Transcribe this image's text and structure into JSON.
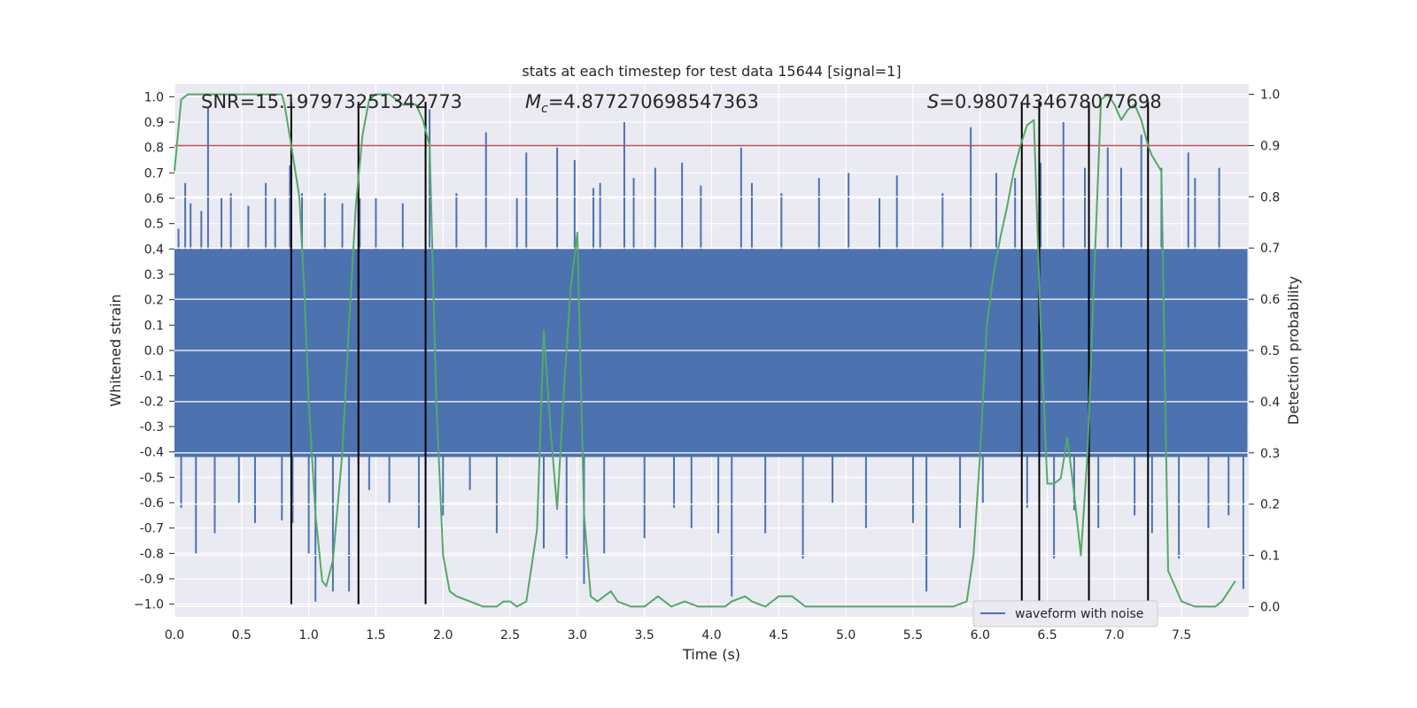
{
  "chart_data": {
    "type": "line",
    "title": "stats at each timestep for test data 15644 [signal=1]",
    "xlabel": "Time (s)",
    "ylabel": "Whitened strain",
    "y2label": "Detection probability",
    "xlim": [
      0.0,
      8.0
    ],
    "ylim": [
      -1.05,
      1.05
    ],
    "y2lim": [
      -0.02,
      1.02
    ],
    "grid": true,
    "x_ticks": [
      "0.0",
      "0.5",
      "1.0",
      "1.5",
      "2.0",
      "2.5",
      "3.0",
      "3.5",
      "4.0",
      "4.5",
      "5.0",
      "5.5",
      "6.0",
      "6.5",
      "7.0",
      "7.5"
    ],
    "y_ticks": [
      "1.0",
      "0.9",
      "0.8",
      "0.7",
      "0.6",
      "0.5",
      "0.4",
      "0.3",
      "0.2",
      "0.1",
      "0.0",
      "-0.1",
      "-0.2",
      "-0.3",
      "-0.4",
      "-0.5",
      "-0.6",
      "-0.7",
      "-0.8",
      "-0.9",
      "−1.0"
    ],
    "y2_ticks": [
      "1.0",
      "0.9",
      "0.8",
      "0.7",
      "0.6",
      "0.5",
      "0.4",
      "0.3",
      "0.2",
      "0.1",
      "0.0"
    ],
    "annotations": {
      "snr": "SNR=15.197973251342773",
      "mc_symbol": "M",
      "mc_subscript": "c",
      "mc_value": "=4.877270698547363",
      "s_symbol": "S",
      "s_value": "=0.9807434678077698"
    },
    "legend": {
      "label": "waveform with noise",
      "placement": "lower-right"
    },
    "colors": {
      "waveform": "#4c72b0",
      "probability": "#55a868",
      "threshold": "#c44e52",
      "markers": "#000000",
      "plot_bg": "#eaeaf2",
      "grid": "#ffffff"
    },
    "series": [
      {
        "name": "waveform with noise",
        "axis": "left",
        "band_envelope": {
          "upper": 0.4,
          "lower": -0.42
        },
        "spikes": [
          [
            0.03,
            0.48
          ],
          [
            0.05,
            -0.62
          ],
          [
            0.08,
            0.66
          ],
          [
            0.12,
            0.58
          ],
          [
            0.16,
            -0.8
          ],
          [
            0.2,
            0.55
          ],
          [
            0.25,
            0.96
          ],
          [
            0.3,
            -0.72
          ],
          [
            0.35,
            0.6
          ],
          [
            0.42,
            0.62
          ],
          [
            0.48,
            -0.6
          ],
          [
            0.55,
            0.57
          ],
          [
            0.6,
            -0.68
          ],
          [
            0.68,
            0.66
          ],
          [
            0.75,
            0.6
          ],
          [
            0.8,
            -0.67
          ],
          [
            0.86,
            0.73
          ],
          [
            0.88,
            -0.68
          ],
          [
            0.95,
            0.62
          ],
          [
            1.0,
            -0.8
          ],
          [
            1.05,
            -0.99
          ],
          [
            1.12,
            0.62
          ],
          [
            1.18,
            -0.95
          ],
          [
            1.25,
            0.58
          ],
          [
            1.3,
            -0.95
          ],
          [
            1.38,
            0.6
          ],
          [
            1.45,
            -0.55
          ],
          [
            1.5,
            0.6
          ],
          [
            1.6,
            -0.6
          ],
          [
            1.7,
            0.58
          ],
          [
            1.82,
            -0.7
          ],
          [
            1.9,
            0.95
          ],
          [
            2.0,
            -0.65
          ],
          [
            2.1,
            0.62
          ],
          [
            2.2,
            -0.55
          ],
          [
            2.32,
            0.86
          ],
          [
            2.4,
            -0.72
          ],
          [
            2.55,
            0.6
          ],
          [
            2.62,
            0.78
          ],
          [
            2.75,
            -0.78
          ],
          [
            2.85,
            0.8
          ],
          [
            2.92,
            -0.82
          ],
          [
            2.98,
            0.75
          ],
          [
            3.05,
            -0.92
          ],
          [
            3.12,
            0.64
          ],
          [
            3.17,
            0.66
          ],
          [
            3.2,
            -0.8
          ],
          [
            3.35,
            0.9
          ],
          [
            3.42,
            0.68
          ],
          [
            3.5,
            -0.74
          ],
          [
            3.58,
            0.72
          ],
          [
            3.72,
            -0.62
          ],
          [
            3.78,
            0.74
          ],
          [
            3.85,
            -0.7
          ],
          [
            3.92,
            0.65
          ],
          [
            4.05,
            -0.72
          ],
          [
            4.15,
            -0.97
          ],
          [
            4.22,
            0.8
          ],
          [
            4.3,
            0.66
          ],
          [
            4.4,
            -0.72
          ],
          [
            4.52,
            0.62
          ],
          [
            4.68,
            -0.82
          ],
          [
            4.8,
            0.68
          ],
          [
            4.9,
            -0.6
          ],
          [
            5.02,
            0.7
          ],
          [
            5.15,
            -0.7
          ],
          [
            5.25,
            0.6
          ],
          [
            5.38,
            0.69
          ],
          [
            5.5,
            -0.68
          ],
          [
            5.6,
            -0.95
          ],
          [
            5.72,
            0.62
          ],
          [
            5.85,
            -0.7
          ],
          [
            5.93,
            0.88
          ],
          [
            6.02,
            -0.6
          ],
          [
            6.12,
            0.7
          ],
          [
            6.26,
            0.68
          ],
          [
            6.35,
            -0.62
          ],
          [
            6.45,
            0.74
          ],
          [
            6.55,
            -0.82
          ],
          [
            6.62,
            0.9
          ],
          [
            6.7,
            -0.63
          ],
          [
            6.78,
            0.72
          ],
          [
            6.88,
            -0.7
          ],
          [
            6.95,
            0.8
          ],
          [
            7.05,
            0.72
          ],
          [
            7.15,
            -0.65
          ],
          [
            7.2,
            0.85
          ],
          [
            7.28,
            -0.72
          ],
          [
            7.35,
            0.72
          ],
          [
            7.48,
            -0.82
          ],
          [
            7.55,
            0.78
          ],
          [
            7.6,
            0.68
          ],
          [
            7.7,
            -0.7
          ],
          [
            7.78,
            0.72
          ],
          [
            7.85,
            -0.65
          ],
          [
            7.96,
            -0.94
          ]
        ]
      },
      {
        "name": "detection probability",
        "axis": "right",
        "x": [
          0.0,
          0.05,
          0.1,
          0.2,
          0.8,
          0.82,
          0.87,
          0.93,
          0.97,
          1.0,
          1.05,
          1.1,
          1.13,
          1.18,
          1.25,
          1.3,
          1.35,
          1.4,
          1.45,
          1.5,
          1.6,
          1.7,
          1.8,
          1.85,
          1.9,
          1.95,
          2.0,
          2.05,
          2.1,
          2.2,
          2.3,
          2.4,
          2.45,
          2.5,
          2.55,
          2.62,
          2.7,
          2.75,
          2.8,
          2.85,
          2.9,
          2.95,
          3.0,
          3.05,
          3.1,
          3.15,
          3.2,
          3.25,
          3.3,
          3.4,
          3.5,
          3.6,
          3.7,
          3.8,
          3.9,
          4.0,
          4.1,
          4.15,
          4.25,
          4.3,
          4.4,
          4.5,
          4.6,
          4.7,
          5.0,
          5.5,
          5.8,
          5.9,
          5.95,
          6.0,
          6.05,
          6.1,
          6.15,
          6.2,
          6.25,
          6.3,
          6.35,
          6.4,
          6.45,
          6.5,
          6.55,
          6.6,
          6.65,
          6.7,
          6.75,
          6.8,
          6.85,
          6.9,
          6.95,
          7.0,
          7.05,
          7.1,
          7.15,
          7.2,
          7.25,
          7.28,
          7.35,
          7.4,
          7.5,
          7.6,
          7.75,
          7.8,
          7.85,
          7.9
        ],
        "values": [
          0.85,
          0.99,
          1.0,
          1.0,
          1.0,
          0.98,
          0.9,
          0.8,
          0.6,
          0.4,
          0.18,
          0.05,
          0.04,
          0.09,
          0.3,
          0.55,
          0.78,
          0.92,
          0.99,
          1.0,
          1.0,
          0.98,
          0.98,
          0.95,
          0.9,
          0.4,
          0.1,
          0.03,
          0.02,
          0.01,
          0.0,
          0.0,
          0.01,
          0.01,
          0.0,
          0.01,
          0.15,
          0.54,
          0.35,
          0.19,
          0.42,
          0.62,
          0.73,
          0.18,
          0.02,
          0.01,
          0.02,
          0.03,
          0.01,
          0.0,
          0.0,
          0.02,
          0.0,
          0.01,
          0.0,
          0.0,
          0.0,
          0.01,
          0.02,
          0.01,
          0.0,
          0.02,
          0.02,
          0.0,
          0.0,
          0.0,
          0.0,
          0.01,
          0.1,
          0.3,
          0.55,
          0.65,
          0.72,
          0.78,
          0.85,
          0.9,
          0.94,
          0.95,
          0.55,
          0.24,
          0.24,
          0.25,
          0.33,
          0.22,
          0.1,
          0.3,
          0.65,
          0.99,
          1.0,
          0.98,
          0.95,
          0.97,
          0.98,
          0.95,
          0.9,
          0.88,
          0.85,
          0.07,
          0.01,
          0.0,
          0.0,
          0.01,
          0.03,
          0.05
        ]
      }
    ],
    "threshold_line": 0.9,
    "vertical_markers": [
      0.87,
      1.37,
      1.87,
      6.31,
      6.44,
      6.81,
      7.25
    ]
  }
}
